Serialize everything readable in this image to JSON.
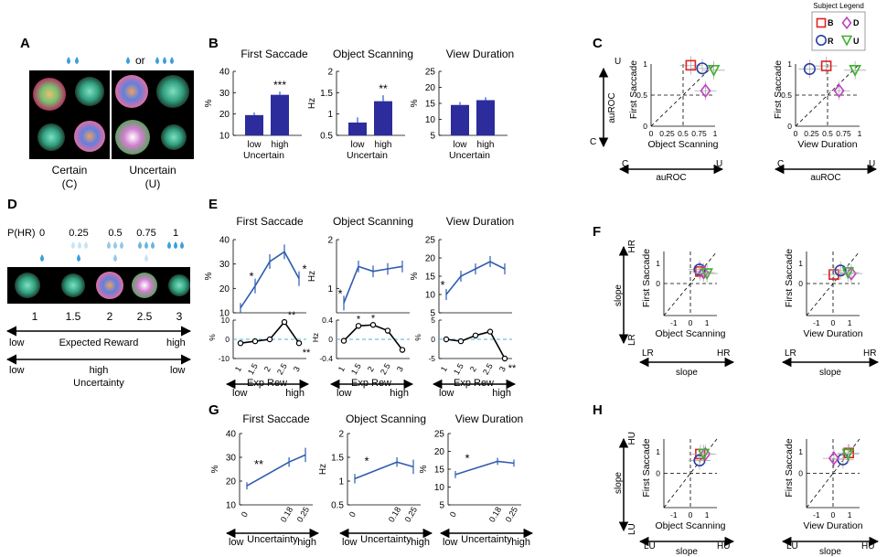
{
  "panel_letters": {
    "A": "A",
    "B": "B",
    "C": "C",
    "D": "D",
    "E": "E",
    "F": "F",
    "G": "G",
    "H": "H"
  },
  "panelA": {
    "or_text": "or",
    "certain": "Certain",
    "certain_abbr": "(C)",
    "uncertain": "Uncertain",
    "uncertain_abbr": "(U)"
  },
  "panelD": {
    "phr_label": "P(HR)",
    "probs": [
      "0",
      "0.25",
      "0.5",
      "0.75",
      "1"
    ],
    "rewards": [
      "1",
      "1.5",
      "2",
      "2.5",
      "3"
    ],
    "low": "low",
    "high": "high",
    "expected_reward": "Expected Reward",
    "uncertainty": "Uncertainty"
  },
  "legend": {
    "title": "Subject Legend",
    "B": "B",
    "D": "D",
    "R": "R",
    "U": "U",
    "colors": {
      "B": "#e02020",
      "D": "#c040c0",
      "R": "#2a3ea0",
      "U": "#40b030"
    }
  },
  "colors": {
    "bar": "#2c2c9c",
    "line": "#2e5cb0",
    "dash": "#4fb0d8",
    "gray": "#999999"
  },
  "chart_data": [
    {
      "id": "B1",
      "type": "bar",
      "title": "First Saccade",
      "ylabel": "%",
      "categories": [
        "low",
        "high"
      ],
      "xlabel": "Uncertain",
      "values": [
        19.5,
        29
      ],
      "errors": [
        1.2,
        1.5
      ],
      "ylim": [
        10,
        40
      ],
      "yticks": [
        "10",
        "20",
        "30",
        "40"
      ],
      "sig": "***"
    },
    {
      "id": "B2",
      "type": "bar",
      "title": "Object Scanning",
      "ylabel": "Hz",
      "categories": [
        "low",
        "high"
      ],
      "xlabel": "Uncertain",
      "values": [
        0.8,
        1.3
      ],
      "errors": [
        0.12,
        0.14
      ],
      "ylim": [
        0.5,
        2
      ],
      "yticks": [
        "0.5",
        "1",
        "1.5",
        "2"
      ],
      "sig": "**"
    },
    {
      "id": "B3",
      "type": "bar",
      "title": "View Duration",
      "ylabel": "%",
      "categories": [
        "low",
        "high"
      ],
      "xlabel": "Uncertain",
      "values": [
        14.5,
        16
      ],
      "errors": [
        0.9,
        0.9
      ],
      "ylim": [
        5,
        25
      ],
      "yticks": [
        "5",
        "10",
        "15",
        "20",
        "25"
      ],
      "sig": ""
    },
    {
      "id": "E1",
      "type": "line",
      "title": "First Saccade",
      "ylabel": "%",
      "x": [
        "1",
        "1.5",
        "2",
        "2.5",
        "3"
      ],
      "values": [
        12,
        21,
        31,
        35,
        24
      ],
      "errors": [
        2,
        3,
        3,
        3,
        3
      ],
      "ylim": [
        10,
        40
      ],
      "yticks": [
        "10",
        "20",
        "30",
        "40"
      ],
      "sigs": [
        {
          "at": 1,
          "text": "*"
        },
        {
          "at": 4,
          "text": "*"
        }
      ],
      "resid": {
        "values": [
          -2,
          -1,
          0,
          9,
          -2
        ],
        "ylim": [
          -10,
          10
        ],
        "yticks": [
          "-10",
          "0",
          "10"
        ],
        "sigs": [
          {
            "at": 3,
            "text": "**"
          },
          {
            "at": 4,
            "text": "**"
          }
        ]
      }
    },
    {
      "id": "E2",
      "type": "line",
      "title": "Object Scanning",
      "ylabel": "Hz",
      "x": [
        "1",
        "1.5",
        "2",
        "2.5",
        "3"
      ],
      "values": [
        0.7,
        1.45,
        1.35,
        1.4,
        1.45
      ],
      "errors": [
        0.15,
        0.12,
        0.12,
        0.12,
        0.12
      ],
      "ylim": [
        0.5,
        2
      ],
      "yticks": [
        "1",
        "2"
      ],
      "sigs": [
        {
          "at": 0,
          "text": "*"
        }
      ],
      "resid": {
        "values": [
          -0.03,
          0.28,
          0.3,
          0.18,
          -0.22
        ],
        "ylim": [
          -0.4,
          0.4
        ],
        "yticks": [
          "-0.4",
          "0",
          "0.4"
        ],
        "sigs": [
          {
            "at": 1,
            "text": "*"
          },
          {
            "at": 2,
            "text": "*"
          }
        ]
      }
    },
    {
      "id": "E3",
      "type": "line",
      "title": "View Duration",
      "ylabel": "%",
      "x": [
        "1",
        "1.5",
        "2",
        "2.5",
        "3"
      ],
      "values": [
        10,
        15,
        17,
        19,
        17
      ],
      "errors": [
        1.5,
        1.5,
        1.5,
        1.5,
        1.5
      ],
      "ylim": [
        5,
        25
      ],
      "yticks": [
        "5",
        "10",
        "15",
        "20",
        "25"
      ],
      "sigs": [
        {
          "at": 0,
          "text": "*"
        }
      ],
      "resid": {
        "values": [
          0,
          -0.5,
          1,
          2,
          -5
        ],
        "ylim": [
          -5,
          5
        ],
        "yticks": [
          "-5",
          "0",
          "5"
        ],
        "sigs": [
          {
            "at": 4,
            "text": "**"
          }
        ]
      }
    },
    {
      "id": "G1",
      "type": "line",
      "title": "First Saccade",
      "ylabel": "%",
      "x": [
        "0",
        "0.18",
        "0.25"
      ],
      "xnum": [
        0,
        0.18,
        0.25
      ],
      "values": [
        18,
        28,
        31
      ],
      "errors": [
        1.5,
        2,
        3
      ],
      "ylim": [
        10,
        40
      ],
      "yticks": [
        "10",
        "20",
        "30",
        "40"
      ],
      "sigs": [
        {
          "at": 0,
          "text": "**"
        }
      ]
    },
    {
      "id": "G2",
      "type": "line",
      "title": "Object Scanning",
      "ylabel": "Hz",
      "x": [
        "0",
        "0.18",
        "0.25"
      ],
      "xnum": [
        0,
        0.18,
        0.25
      ],
      "values": [
        1.05,
        1.4,
        1.3
      ],
      "errors": [
        0.1,
        0.1,
        0.15
      ],
      "ylim": [
        0.5,
        2
      ],
      "yticks": [
        "0.5",
        "1",
        "1.5",
        "2"
      ],
      "sigs": [
        {
          "at": 0,
          "text": "*"
        }
      ]
    },
    {
      "id": "G3",
      "type": "line",
      "title": "View Duration",
      "ylabel": "%",
      "x": [
        "0",
        "0.18",
        "0.25"
      ],
      "xnum": [
        0,
        0.18,
        0.25
      ],
      "values": [
        13.5,
        17.2,
        16.7
      ],
      "errors": [
        1,
        1,
        1
      ],
      "ylim": [
        5,
        25
      ],
      "yticks": [
        "5",
        "10",
        "15",
        "20",
        "25"
      ],
      "sigs": [
        {
          "at": 0,
          "text": "*"
        }
      ]
    }
  ],
  "texts": {
    "exp_rew": "Exp Rew",
    "uncertainty": "Uncertainty",
    "low": "low",
    "high": "high",
    "auroc": "auROC",
    "slope": "slope",
    "first_saccade": "First Saccade",
    "object_scanning": "Object Scanning",
    "view_duration": "View Duration",
    "C": "C",
    "U": "U",
    "LR": "LR",
    "HR": "HR",
    "LU": "LU",
    "HU": "HU"
  },
  "scatter_data": {
    "C1": {
      "xlim": [
        0,
        1
      ],
      "ylim": [
        0,
        1
      ],
      "xticks": [
        "0",
        "0.25",
        "0.5",
        "0.75",
        "1"
      ],
      "yticks": [
        "0",
        "0.5",
        "1"
      ],
      "points": {
        "B": [
          0.62,
          0.98
        ],
        "R": [
          0.8,
          0.93
        ],
        "D": [
          0.85,
          0.57
        ],
        "U": [
          0.98,
          0.9
        ]
      }
    },
    "C2": {
      "xlim": [
        0,
        1
      ],
      "ylim": [
        0,
        1
      ],
      "xticks": [
        "0",
        "0.25",
        "0.5",
        "0.75",
        "1"
      ],
      "yticks": [
        "0",
        "0.5",
        "1"
      ],
      "points": {
        "B": [
          0.48,
          0.97
        ],
        "R": [
          0.22,
          0.92
        ],
        "D": [
          0.68,
          0.57
        ],
        "U": [
          0.93,
          0.9
        ]
      }
    },
    "F1": {
      "xlim": [
        -1.6,
        1.6
      ],
      "ylim": [
        -1.6,
        1.6
      ],
      "xticks": [
        "-1",
        "0",
        "1"
      ],
      "yticks": [
        "0",
        "1"
      ],
      "points": {
        "B": [
          0.6,
          0.6
        ],
        "R": [
          0.55,
          0.7
        ],
        "D": [
          0.8,
          0.55
        ],
        "U": [
          1.0,
          0.5
        ]
      }
    },
    "F2": {
      "xlim": [
        -1.6,
        1.6
      ],
      "ylim": [
        -1.6,
        1.6
      ],
      "xticks": [
        "-1",
        "0",
        "1"
      ],
      "yticks": [
        "0",
        "1"
      ],
      "points": {
        "B": [
          0.05,
          0.45
        ],
        "R": [
          0.45,
          0.65
        ],
        "D": [
          1.1,
          0.5
        ],
        "U": [
          0.9,
          0.55
        ]
      }
    },
    "H1": {
      "xlim": [
        -1.6,
        1.6
      ],
      "ylim": [
        -1.6,
        1.6
      ],
      "xticks": [
        "-1",
        "0",
        "1"
      ],
      "yticks": [
        "0",
        "1"
      ],
      "points": {
        "B": [
          0.6,
          0.9
        ],
        "R": [
          0.55,
          0.6
        ],
        "D": [
          0.9,
          0.9
        ],
        "U": [
          0.8,
          0.9
        ]
      }
    },
    "H2": {
      "xlim": [
        -1.6,
        1.6
      ],
      "ylim": [
        -1.6,
        1.6
      ],
      "xticks": [
        "-1",
        "0",
        "1"
      ],
      "yticks": [
        "0",
        "1"
      ],
      "points": {
        "B": [
          0.95,
          0.95
        ],
        "R": [
          0.6,
          0.65
        ],
        "D": [
          0.05,
          0.7
        ],
        "U": [
          0.9,
          0.9
        ]
      }
    }
  }
}
